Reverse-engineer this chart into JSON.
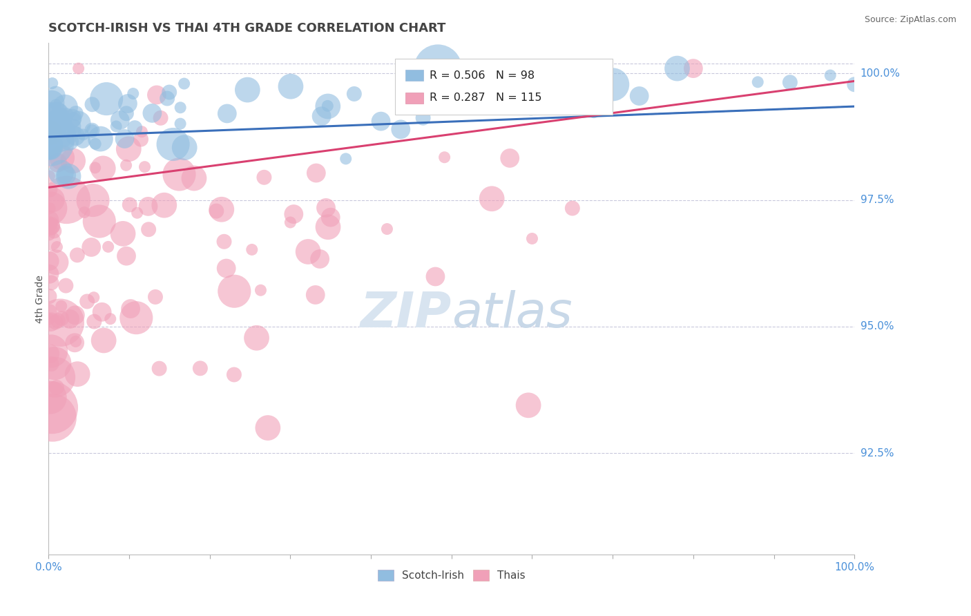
{
  "title": "SCOTCH-IRISH VS THAI 4TH GRADE CORRELATION CHART",
  "source_text": "Source: ZipAtlas.com",
  "ylabel": "4th Grade",
  "xlim": [
    0.0,
    1.0
  ],
  "ylim": [
    0.905,
    1.006
  ],
  "yticks": [
    0.925,
    0.95,
    0.975,
    1.0
  ],
  "ytick_labels": [
    "92.5%",
    "95.0%",
    "97.5%",
    "100.0%"
  ],
  "xtick_labels": [
    "0.0%",
    "100.0%"
  ],
  "si_color": "#91bde0",
  "thai_color": "#f0a0b8",
  "si_line_color": "#3a6fba",
  "thai_line_color": "#d94070",
  "si_R": 0.506,
  "si_N": 98,
  "thai_R": 0.287,
  "thai_N": 115,
  "legend_label_1": "Scotch-Irish",
  "legend_label_2": "Thais",
  "title_color": "#444444",
  "axis_label_color": "#4a90d9",
  "bg_color": "#ffffff",
  "grid_color": "#c8c8dc",
  "watermark_color": "#d8e4f0",
  "watermark_color2": "#c8d8e8"
}
